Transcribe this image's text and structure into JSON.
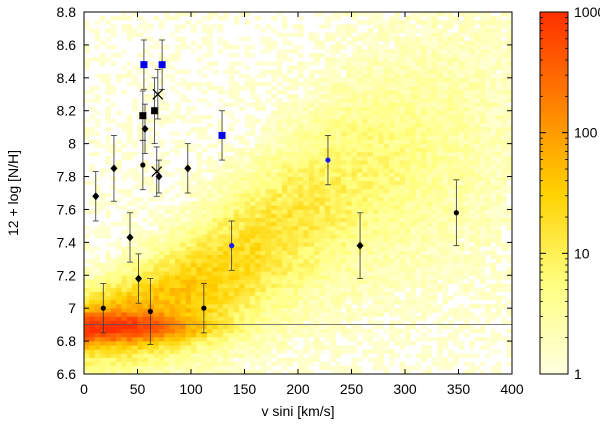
{
  "chart_data": {
    "type": "heatmap",
    "xlabel": "v sini [km/s]",
    "ylabel": "12 + log [N/H]",
    "xlim": [
      0,
      400
    ],
    "ylim": [
      6.6,
      8.8
    ],
    "x_ticks": [
      "0",
      "50",
      "100",
      "150",
      "200",
      "250",
      "300",
      "350",
      "400"
    ],
    "y_ticks": [
      "6.6",
      "6.8",
      "7",
      "7.2",
      "7.4",
      "7.6",
      "7.8",
      "8",
      "8.2",
      "8.4",
      "8.6",
      "8.8"
    ],
    "colorbar": {
      "scale": "log",
      "range": [
        1,
        1000
      ],
      "ticks": [
        "1",
        "10",
        "100",
        "1000"
      ],
      "colors": [
        "#ffffe0",
        "#ffff80",
        "#ffd200",
        "#ff8000",
        "#ff3000"
      ]
    },
    "reference_line": {
      "y": 6.9
    },
    "density_peak": {
      "x": 40,
      "y": 6.88
    },
    "density_ridge": [
      {
        "x": 0,
        "y": 6.88
      },
      {
        "x": 50,
        "y": 6.95
      },
      {
        "x": 100,
        "y": 7.1
      },
      {
        "x": 150,
        "y": 7.3
      },
      {
        "x": 200,
        "y": 7.55
      },
      {
        "x": 250,
        "y": 7.75
      },
      {
        "x": 300,
        "y": 7.9
      },
      {
        "x": 350,
        "y": 8.02
      },
      {
        "x": 400,
        "y": 8.1
      }
    ],
    "series": [
      {
        "marker": "circle",
        "color": "#000000",
        "points": [
          {
            "x": 18,
            "y": 7.0,
            "err": 0.15
          },
          {
            "x": 55,
            "y": 7.87,
            "err": 0.15
          },
          {
            "x": 62,
            "y": 6.98,
            "err": 0.2
          },
          {
            "x": 112,
            "y": 7.0,
            "err": 0.15
          },
          {
            "x": 348,
            "y": 7.58,
            "err": 0.2
          }
        ]
      },
      {
        "marker": "diamond",
        "color": "#000000",
        "points": [
          {
            "x": 11,
            "y": 7.68,
            "err": 0.15
          },
          {
            "x": 28,
            "y": 7.85,
            "err": 0.2
          },
          {
            "x": 43,
            "y": 7.43,
            "err": 0.15
          },
          {
            "x": 51,
            "y": 7.18,
            "err": 0.15
          },
          {
            "x": 57,
            "y": 8.09,
            "err": 0.15
          },
          {
            "x": 70,
            "y": 7.8,
            "err": 0.1
          },
          {
            "x": 97,
            "y": 7.85,
            "err": 0.15
          },
          {
            "x": 258,
            "y": 7.38,
            "err": 0.2
          }
        ]
      },
      {
        "marker": "circle",
        "color": "#1a1aff",
        "points": [
          {
            "x": 138,
            "y": 7.38,
            "err": 0.15
          },
          {
            "x": 228,
            "y": 7.9,
            "err": 0.15
          }
        ]
      },
      {
        "marker": "square",
        "color": "#0000ee",
        "points": [
          {
            "x": 56,
            "y": 8.48,
            "err": 0.15
          },
          {
            "x": 73,
            "y": 8.48,
            "err": 0.15
          },
          {
            "x": 129,
            "y": 8.05,
            "err": 0.15
          }
        ]
      },
      {
        "marker": "square",
        "color": "#000000",
        "points": [
          {
            "x": 55,
            "y": 8.17,
            "err": 0.15
          },
          {
            "x": 66,
            "y": 8.2,
            "err": 0.2
          }
        ]
      },
      {
        "marker": "cross",
        "color": "#000000",
        "points": [
          {
            "x": 69,
            "y": 8.3,
            "err": 0.15
          },
          {
            "x": 68,
            "y": 7.83,
            "err": 0.15
          }
        ]
      }
    ]
  }
}
